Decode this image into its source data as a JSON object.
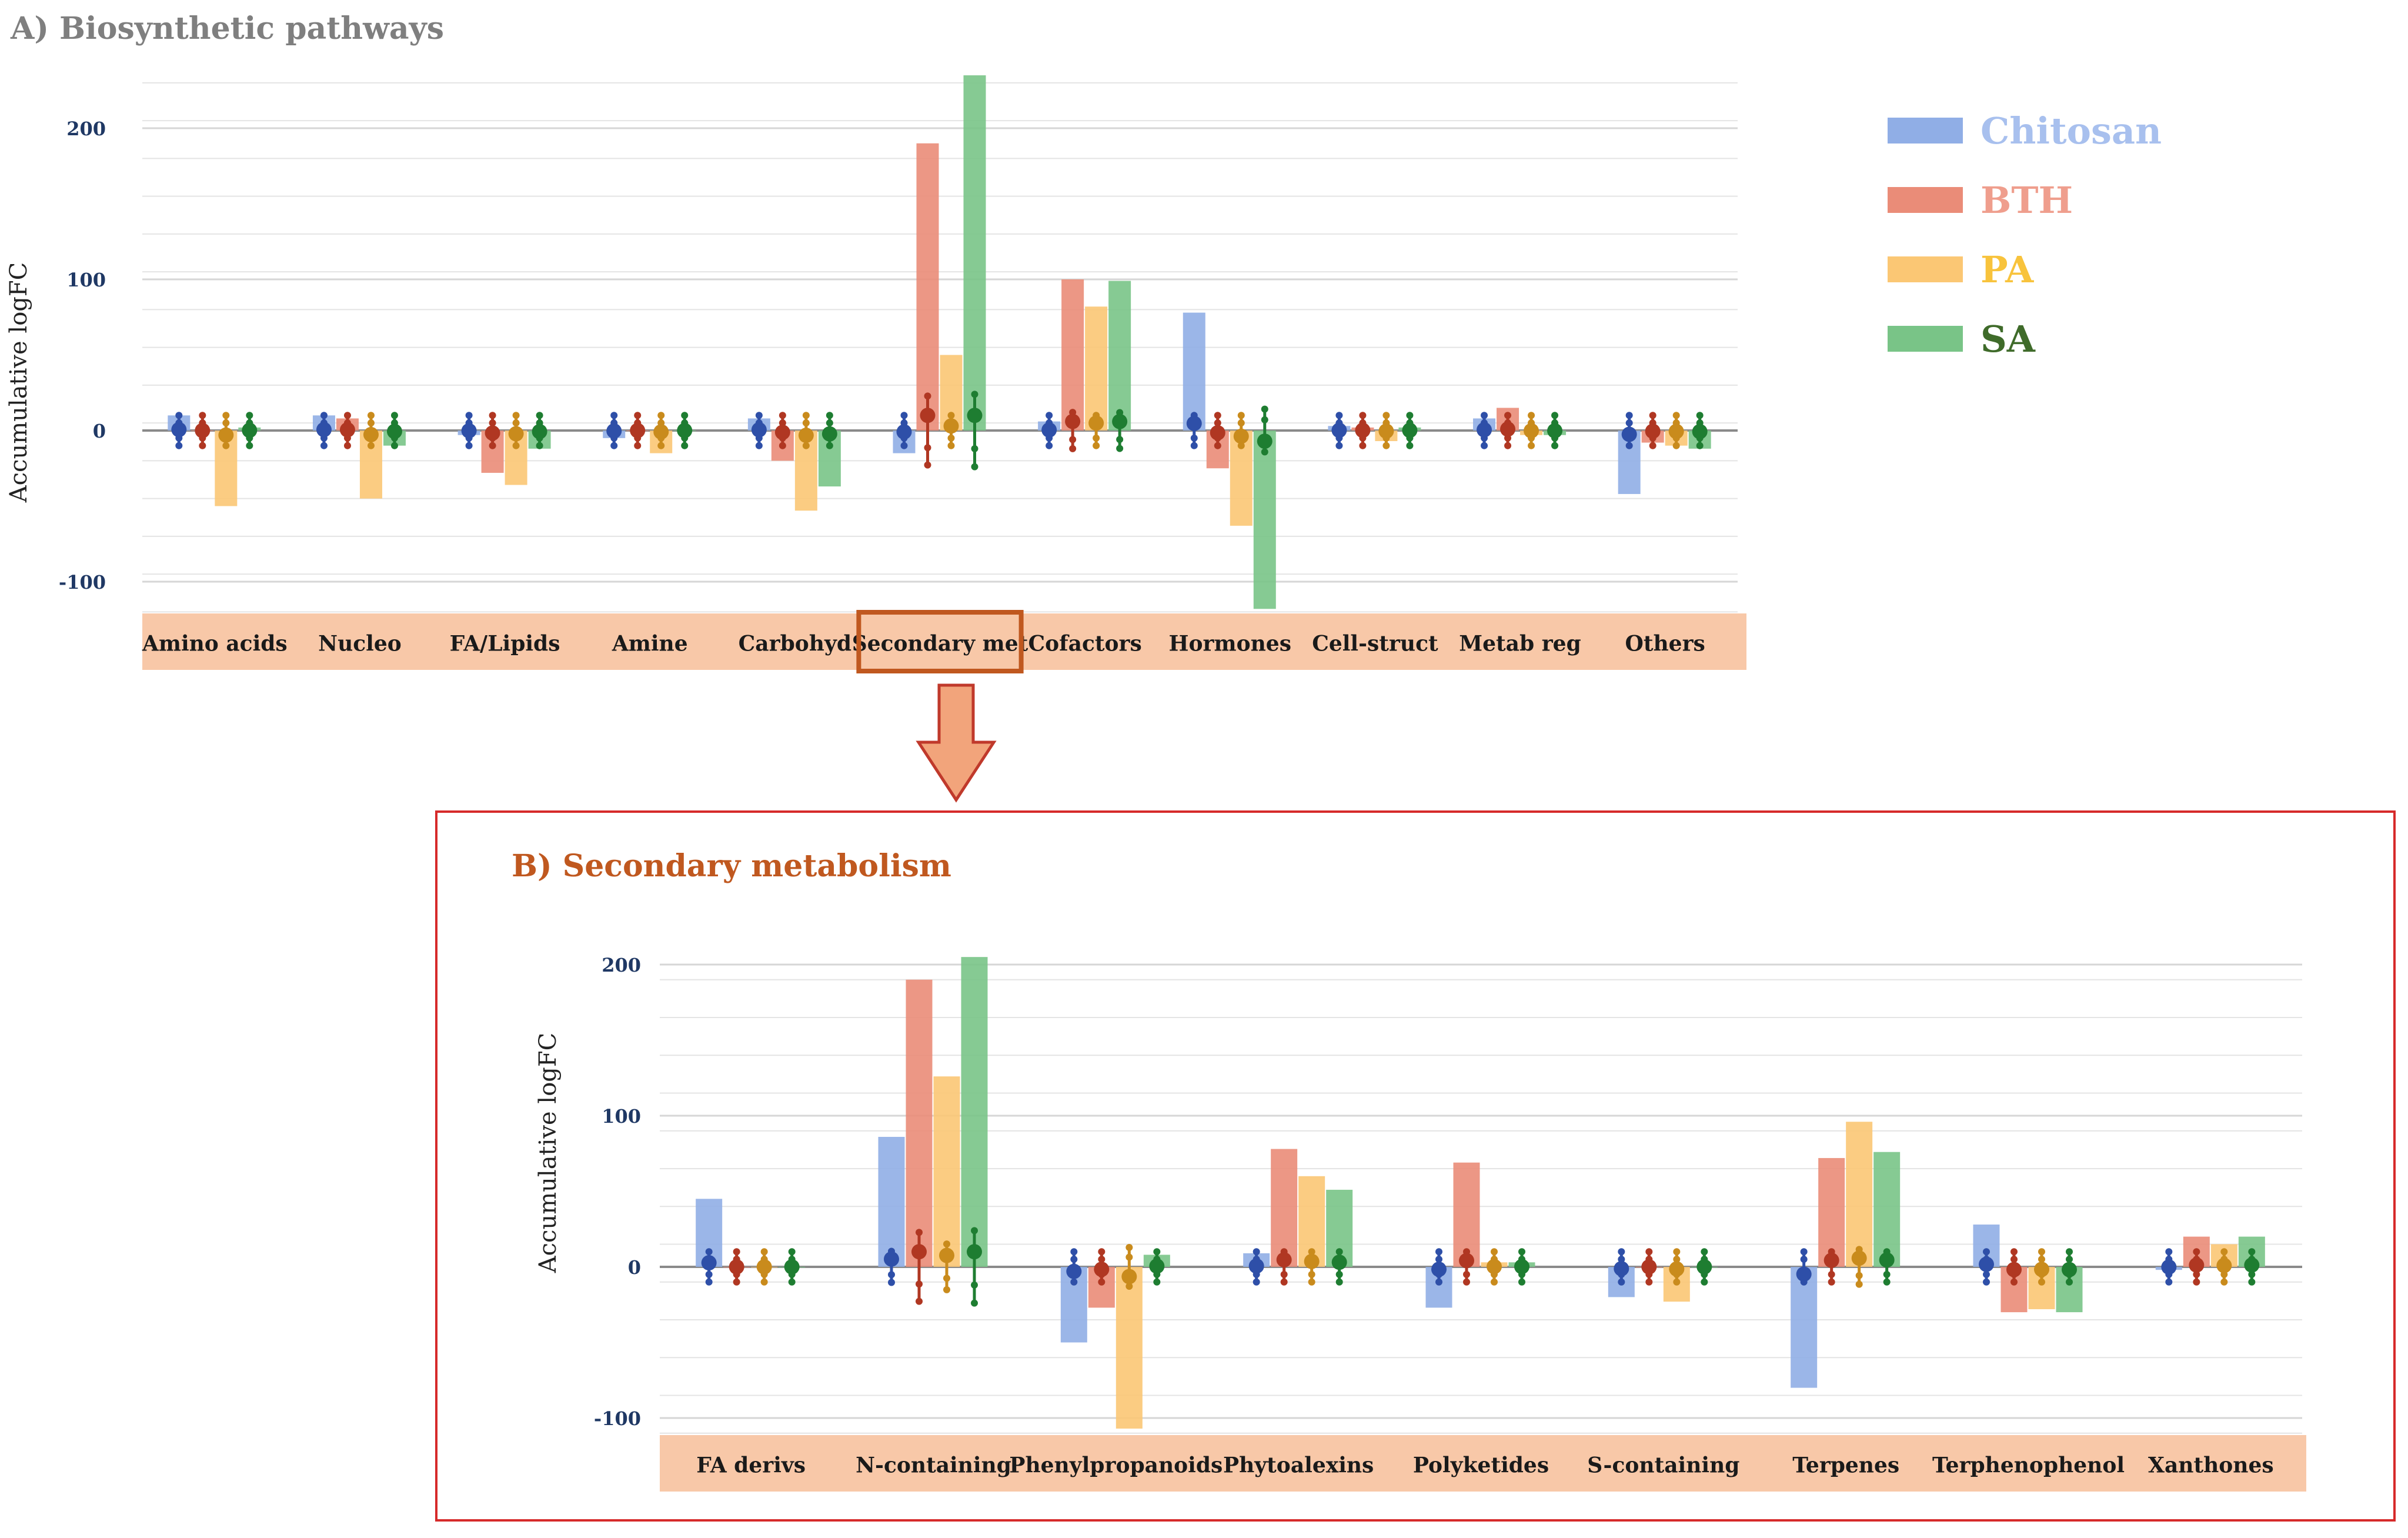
{
  "series": [
    {
      "name": "Chitosan",
      "bar": "#90aee6",
      "dot": "#2e4fa8",
      "legend": "#a8c0ee"
    },
    {
      "name": "BTH",
      "bar": "#ea8c78",
      "dot": "#b03722",
      "legend": "#ef9e8d"
    },
    {
      "name": "PA",
      "bar": "#fbc774",
      "dot": "#c98b1c",
      "legend": "#f8c33c"
    },
    {
      "name": "SA",
      "bar": "#79c487",
      "dot": "#1e7d31",
      "legend": "#3f6b2a"
    }
  ],
  "colors": {
    "category_band": "#f8c8a8",
    "highlight": "#c0581f",
    "arrow_fill": "#f2a47b",
    "arrow_stroke": "#c0392b",
    "panelB_border": "#d62a2a",
    "title_A": "#7f7f7f",
    "title_B": "#c0581f",
    "tick_label": "#1f3864"
  },
  "chart_data": [
    {
      "id": "A",
      "type": "bar",
      "title": "A) Biosynthetic pathways",
      "ylabel": "Accumulative logFC",
      "ylim": [
        -120,
        240
      ],
      "yticks": [
        200,
        100,
        0,
        -100
      ],
      "highlighted_category": "Secondary met",
      "categories": [
        "Amino acids",
        "Nucleo",
        "FA/Lipids",
        "Amine",
        "Carbohyd",
        "Secondary met",
        "Cofactors",
        "Hormones",
        "Cell-struct",
        "Metab reg",
        "Others"
      ],
      "series": [
        {
          "name": "Chitosan",
          "values": [
            10,
            10,
            -3,
            -5,
            8,
            -15,
            6,
            78,
            3,
            8,
            -42
          ]
        },
        {
          "name": "BTH",
          "values": [
            0,
            8,
            -28,
            0,
            -20,
            190,
            100,
            -25,
            2,
            15,
            -8
          ]
        },
        {
          "name": "PA",
          "values": [
            -50,
            -45,
            -36,
            -15,
            -53,
            50,
            82,
            -63,
            -7,
            -3,
            -10
          ]
        },
        {
          "name": "SA",
          "values": [
            2,
            -10,
            -12,
            0,
            -37,
            235,
            99,
            -118,
            2,
            -3,
            -12
          ]
        }
      ]
    },
    {
      "id": "B",
      "type": "bar",
      "title": "B) Secondary metabolism",
      "ylabel": "Accumulative logFC",
      "ylim": [
        -110,
        210
      ],
      "yticks": [
        200,
        100,
        0,
        -100
      ],
      "categories": [
        "FA derivs",
        "N-containing",
        "Phenylpropanoids",
        "Phytoalexins",
        "Polyketides",
        "S-containing",
        "Terpenes",
        "Terphenophenol",
        "Xanthones"
      ],
      "series": [
        {
          "name": "Chitosan",
          "values": [
            45,
            86,
            -50,
            9,
            -27,
            -20,
            -80,
            28,
            -2
          ]
        },
        {
          "name": "BTH",
          "values": [
            0,
            190,
            -27,
            78,
            69,
            0,
            72,
            -30,
            20
          ]
        },
        {
          "name": "PA",
          "values": [
            0,
            126,
            -107,
            60,
            3,
            -23,
            96,
            -28,
            15
          ]
        },
        {
          "name": "SA",
          "values": [
            0,
            205,
            8,
            51,
            3,
            0,
            76,
            -30,
            20
          ]
        }
      ]
    }
  ]
}
